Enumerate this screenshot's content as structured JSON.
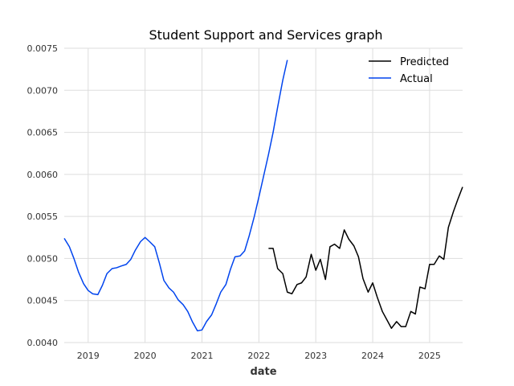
{
  "chart_data": {
    "type": "line",
    "title": "Student Support and Services graph",
    "xlabel": "date",
    "ylabel": "",
    "xlim": [
      2018.58,
      2025.58
    ],
    "ylim": [
      0.004,
      0.0075
    ],
    "x_ticks": [
      2019,
      2020,
      2021,
      2022,
      2023,
      2024,
      2025
    ],
    "x_tick_labels": [
      "2019",
      "2020",
      "2021",
      "2022",
      "2023",
      "2024",
      "2025"
    ],
    "y_ticks": [
      0.004,
      0.0045,
      0.005,
      0.0055,
      0.006,
      0.0065,
      0.007,
      0.0075
    ],
    "y_tick_labels": [
      "0.0040",
      "0.0045",
      "0.0050",
      "0.0055",
      "0.0060",
      "0.0065",
      "0.0070",
      "0.0075"
    ],
    "grid": true,
    "legend_position": "top-right",
    "series": [
      {
        "name": "Predicted",
        "color": "#000000",
        "points": [
          [
            2022.17,
            0.00512
          ],
          [
            2022.25,
            0.00512
          ],
          [
            2022.33,
            0.00488
          ],
          [
            2022.42,
            0.00482
          ],
          [
            2022.5,
            0.0046
          ],
          [
            2022.58,
            0.00458
          ],
          [
            2022.67,
            0.00469
          ],
          [
            2022.75,
            0.00471
          ],
          [
            2022.83,
            0.00478
          ],
          [
            2022.92,
            0.00505
          ],
          [
            2023.0,
            0.00486
          ],
          [
            2023.08,
            0.00499
          ],
          [
            2023.17,
            0.00475
          ],
          [
            2023.25,
            0.00514
          ],
          [
            2023.33,
            0.00517
          ],
          [
            2023.42,
            0.00512
          ],
          [
            2023.5,
            0.00534
          ],
          [
            2023.58,
            0.00523
          ],
          [
            2023.67,
            0.00515
          ],
          [
            2023.75,
            0.00502
          ],
          [
            2023.83,
            0.00476
          ],
          [
            2023.92,
            0.0046
          ],
          [
            2024.0,
            0.00471
          ],
          [
            2024.08,
            0.00454
          ],
          [
            2024.17,
            0.00437
          ],
          [
            2024.25,
            0.00427
          ],
          [
            2024.33,
            0.00417
          ],
          [
            2024.42,
            0.00425
          ],
          [
            2024.5,
            0.00419
          ],
          [
            2024.58,
            0.00419
          ],
          [
            2024.67,
            0.00437
          ],
          [
            2024.75,
            0.00434
          ],
          [
            2024.83,
            0.00466
          ],
          [
            2024.92,
            0.00464
          ],
          [
            2025.0,
            0.00493
          ],
          [
            2025.08,
            0.00493
          ],
          [
            2025.17,
            0.00503
          ],
          [
            2025.25,
            0.00499
          ],
          [
            2025.33,
            0.00537
          ],
          [
            2025.42,
            0.00556
          ],
          [
            2025.5,
            0.00571
          ],
          [
            2025.58,
            0.00585
          ]
        ]
      },
      {
        "name": "Actual",
        "color": "#0044ee",
        "points": [
          [
            2018.58,
            0.00524
          ],
          [
            2018.67,
            0.00514
          ],
          [
            2018.75,
            0.005
          ],
          [
            2018.83,
            0.00484
          ],
          [
            2018.92,
            0.0047
          ],
          [
            2019.0,
            0.00462
          ],
          [
            2019.08,
            0.00458
          ],
          [
            2019.17,
            0.00457
          ],
          [
            2019.25,
            0.00468
          ],
          [
            2019.33,
            0.00482
          ],
          [
            2019.42,
            0.00488
          ],
          [
            2019.5,
            0.00489
          ],
          [
            2019.58,
            0.00491
          ],
          [
            2019.67,
            0.00493
          ],
          [
            2019.75,
            0.00499
          ],
          [
            2019.83,
            0.0051
          ],
          [
            2019.92,
            0.0052
          ],
          [
            2020.0,
            0.00525
          ],
          [
            2020.08,
            0.0052
          ],
          [
            2020.17,
            0.00514
          ],
          [
            2020.25,
            0.00495
          ],
          [
            2020.33,
            0.00474
          ],
          [
            2020.42,
            0.00465
          ],
          [
            2020.5,
            0.0046
          ],
          [
            2020.58,
            0.00451
          ],
          [
            2020.67,
            0.00445
          ],
          [
            2020.75,
            0.00437
          ],
          [
            2020.83,
            0.00425
          ],
          [
            2020.92,
            0.00414
          ],
          [
            2021.0,
            0.00415
          ],
          [
            2021.08,
            0.00425
          ],
          [
            2021.17,
            0.00433
          ],
          [
            2021.25,
            0.00446
          ],
          [
            2021.33,
            0.0046
          ],
          [
            2021.42,
            0.00469
          ],
          [
            2021.5,
            0.00487
          ],
          [
            2021.58,
            0.00502
          ],
          [
            2021.67,
            0.00503
          ],
          [
            2021.75,
            0.00509
          ],
          [
            2021.83,
            0.00527
          ],
          [
            2021.92,
            0.0055
          ],
          [
            2022.0,
            0.00573
          ],
          [
            2022.08,
            0.00597
          ],
          [
            2022.17,
            0.00624
          ],
          [
            2022.25,
            0.0065
          ],
          [
            2022.33,
            0.0068
          ],
          [
            2022.42,
            0.00712
          ],
          [
            2022.5,
            0.00736
          ]
        ]
      }
    ]
  }
}
